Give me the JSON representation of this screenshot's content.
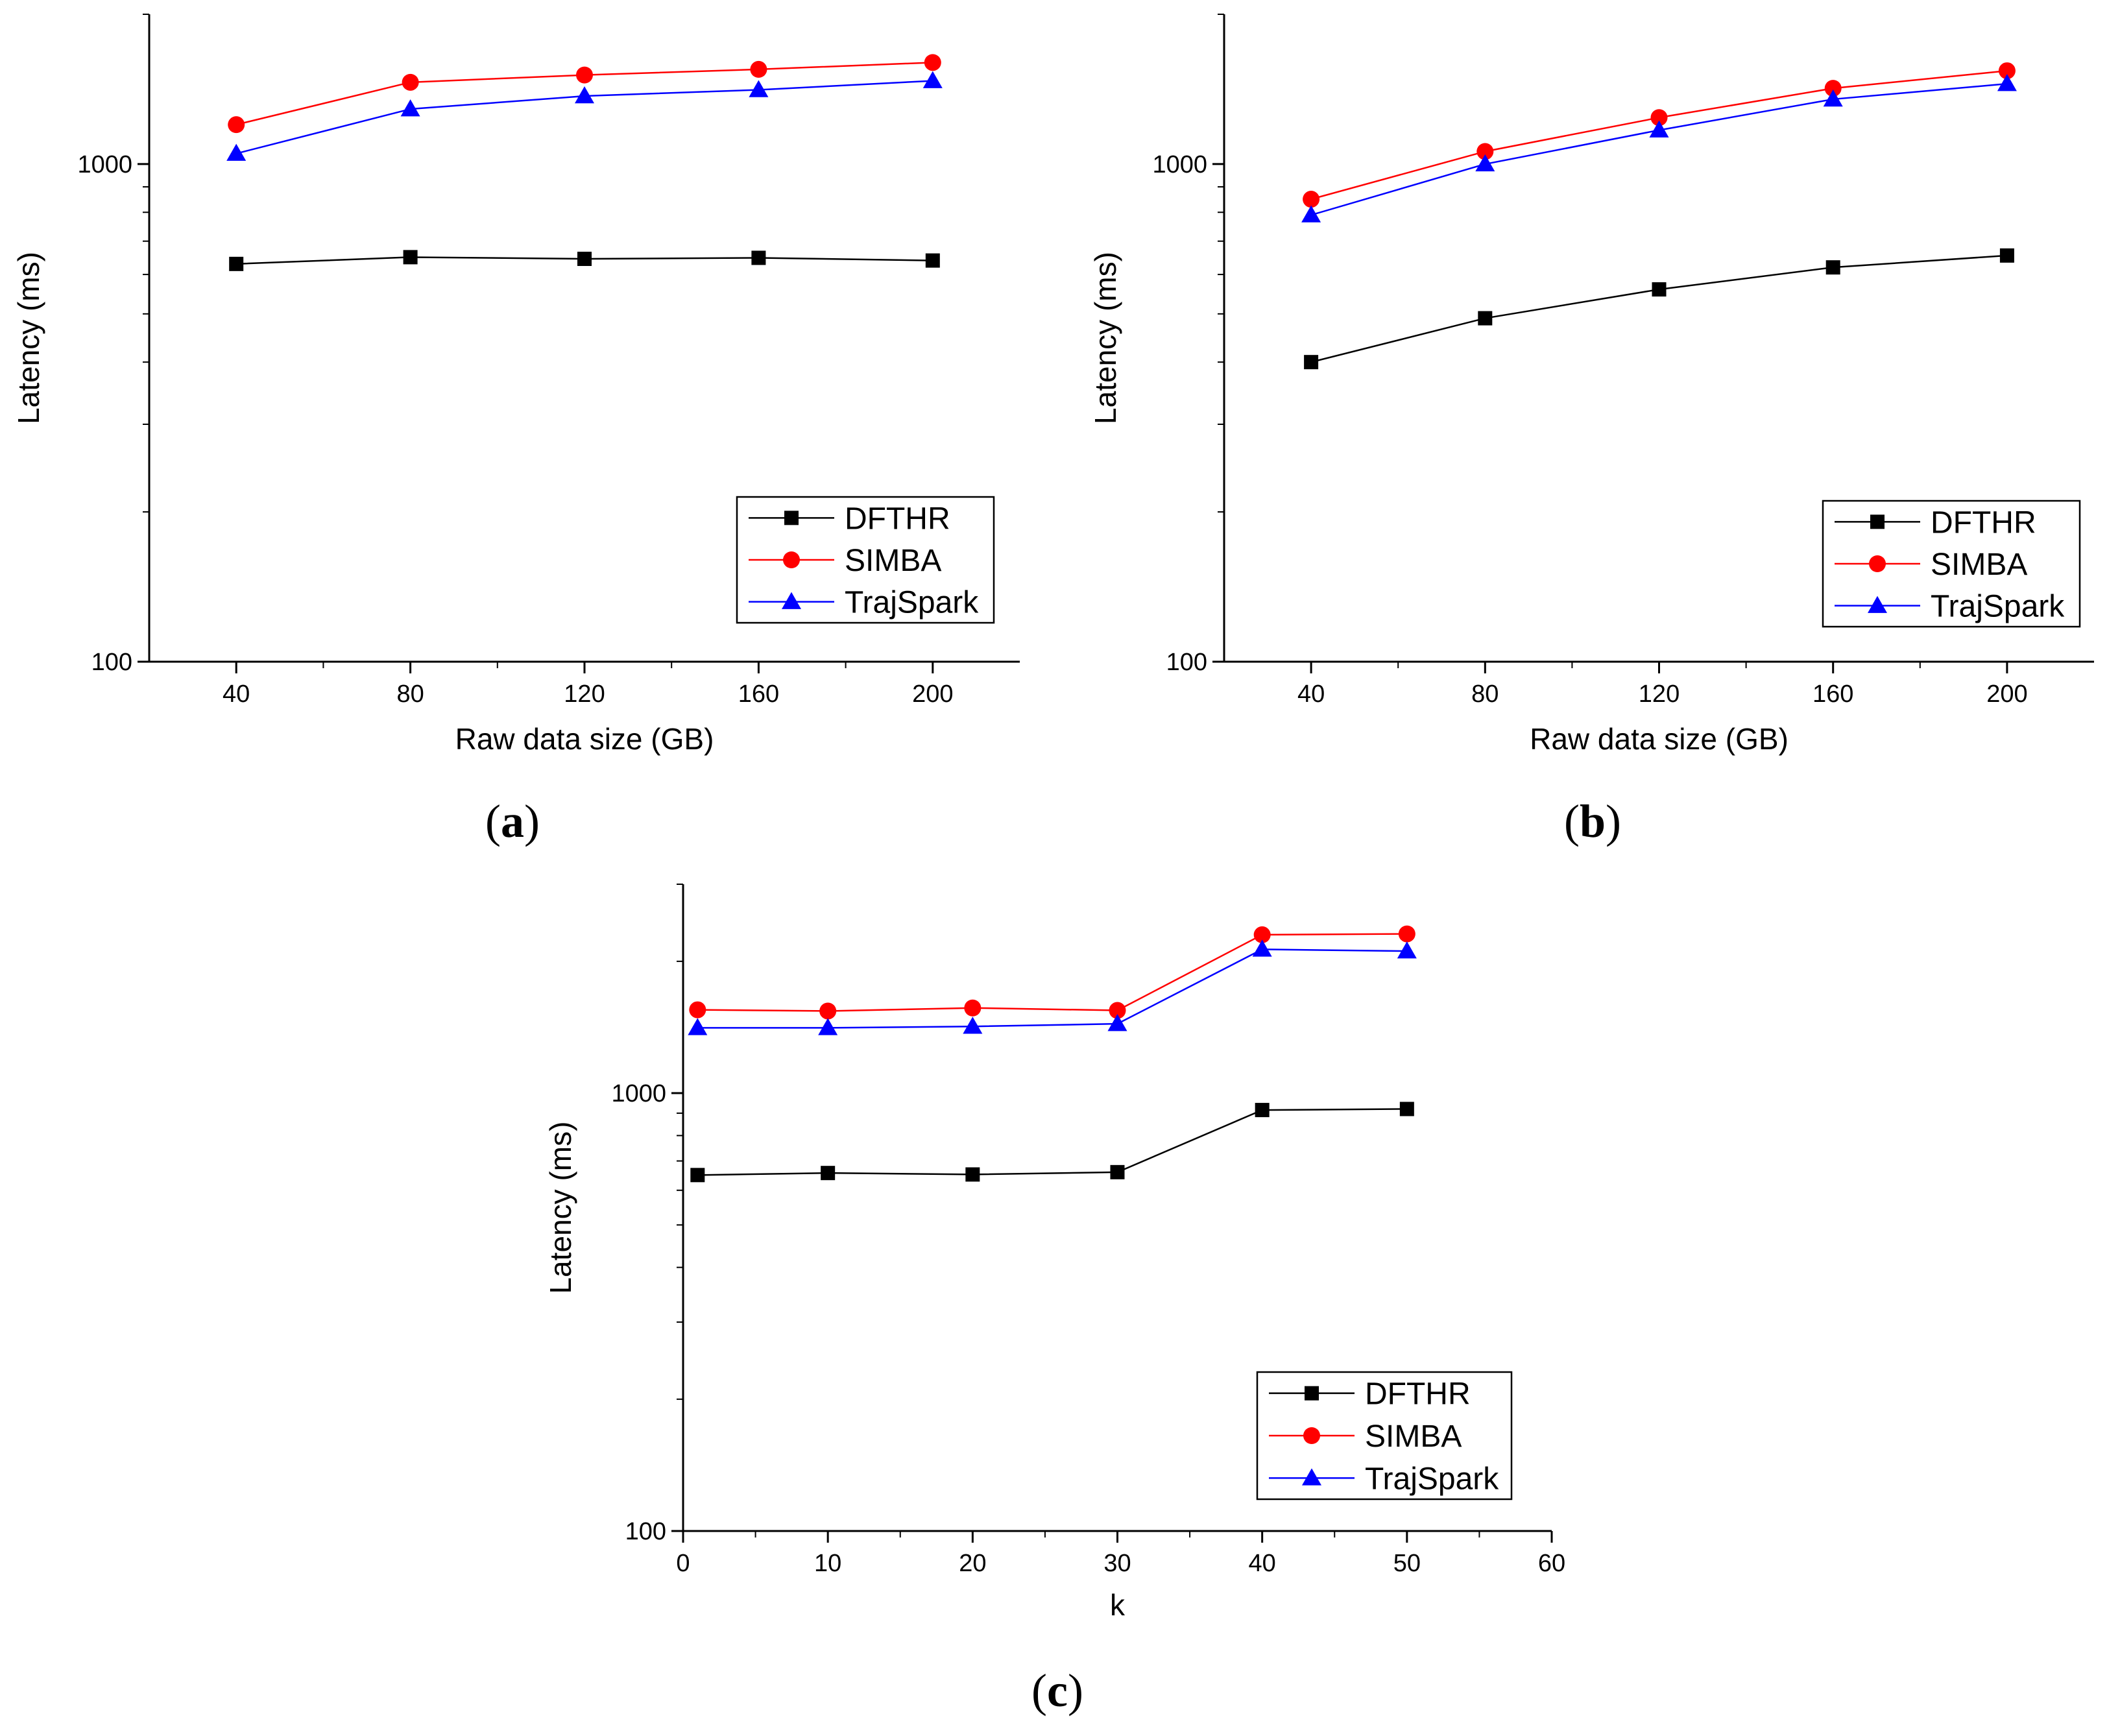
{
  "chart_data": [
    {
      "type": "line",
      "panel_label": "a",
      "xlabel": "Raw data size (GB)",
      "ylabel": "Latency (ms)",
      "yscale": "log",
      "xlim": [
        20,
        220
      ],
      "ylim": [
        100,
        2000
      ],
      "xticks": [
        40,
        80,
        120,
        160,
        200
      ],
      "xtick_labels": [
        "40",
        "80",
        "120",
        "160",
        "200"
      ],
      "yticks": [
        100,
        1000
      ],
      "ytick_labels": [
        "100",
        "1000"
      ],
      "x": [
        40,
        80,
        120,
        160,
        200
      ],
      "legend_position": "lower-right",
      "series": [
        {
          "name": "DFTHR",
          "color": "#000000",
          "marker": "square",
          "values": [
            630,
            650,
            645,
            648,
            640
          ]
        },
        {
          "name": "SIMBA",
          "color": "#ff0000",
          "marker": "circle",
          "values": [
            1200,
            1460,
            1510,
            1550,
            1600
          ]
        },
        {
          "name": "TrajSpark",
          "color": "#0000ff",
          "marker": "triangle",
          "values": [
            1050,
            1290,
            1370,
            1410,
            1470
          ]
        }
      ]
    },
    {
      "type": "line",
      "panel_label": "b",
      "xlabel": "Raw data size (GB)",
      "ylabel": "Latency (ms)",
      "yscale": "log",
      "xlim": [
        20,
        220
      ],
      "ylim": [
        100,
        2000
      ],
      "xticks": [
        40,
        80,
        120,
        160,
        200
      ],
      "xtick_labels": [
        "40",
        "80",
        "120",
        "160",
        "200"
      ],
      "yticks": [
        100,
        1000
      ],
      "ytick_labels": [
        "100",
        "1000"
      ],
      "x": [
        40,
        80,
        120,
        160,
        200
      ],
      "legend_position": "lower-right",
      "series": [
        {
          "name": "DFTHR",
          "color": "#000000",
          "marker": "square",
          "values": [
            400,
            490,
            560,
            620,
            655
          ]
        },
        {
          "name": "SIMBA",
          "color": "#ff0000",
          "marker": "circle",
          "values": [
            850,
            1060,
            1240,
            1420,
            1540
          ]
        },
        {
          "name": "TrajSpark",
          "color": "#0000ff",
          "marker": "triangle",
          "values": [
            790,
            1000,
            1170,
            1350,
            1450
          ]
        }
      ]
    },
    {
      "type": "line",
      "panel_label": "c",
      "xlabel": "k",
      "ylabel": "Latency (ms)",
      "yscale": "log",
      "xlim": [
        0,
        60
      ],
      "ylim": [
        100,
        3000
      ],
      "xticks": [
        0,
        10,
        20,
        30,
        40,
        50,
        60
      ],
      "xtick_labels": [
        "0",
        "10",
        "20",
        "30",
        "40",
        "50",
        "60"
      ],
      "yticks": [
        100,
        1000
      ],
      "ytick_labels": [
        "100",
        "1000"
      ],
      "x": [
        1,
        10,
        20,
        30,
        40,
        50
      ],
      "legend_position": "lower-right",
      "series": [
        {
          "name": "DFTHR",
          "color": "#000000",
          "marker": "square",
          "values": [
            650,
            657,
            652,
            660,
            915,
            920
          ]
        },
        {
          "name": "SIMBA",
          "color": "#ff0000",
          "marker": "circle",
          "values": [
            1550,
            1540,
            1565,
            1545,
            2300,
            2310
          ]
        },
        {
          "name": "TrajSpark",
          "color": "#0000ff",
          "marker": "triangle",
          "values": [
            1410,
            1410,
            1420,
            1440,
            2130,
            2110
          ]
        }
      ]
    }
  ]
}
